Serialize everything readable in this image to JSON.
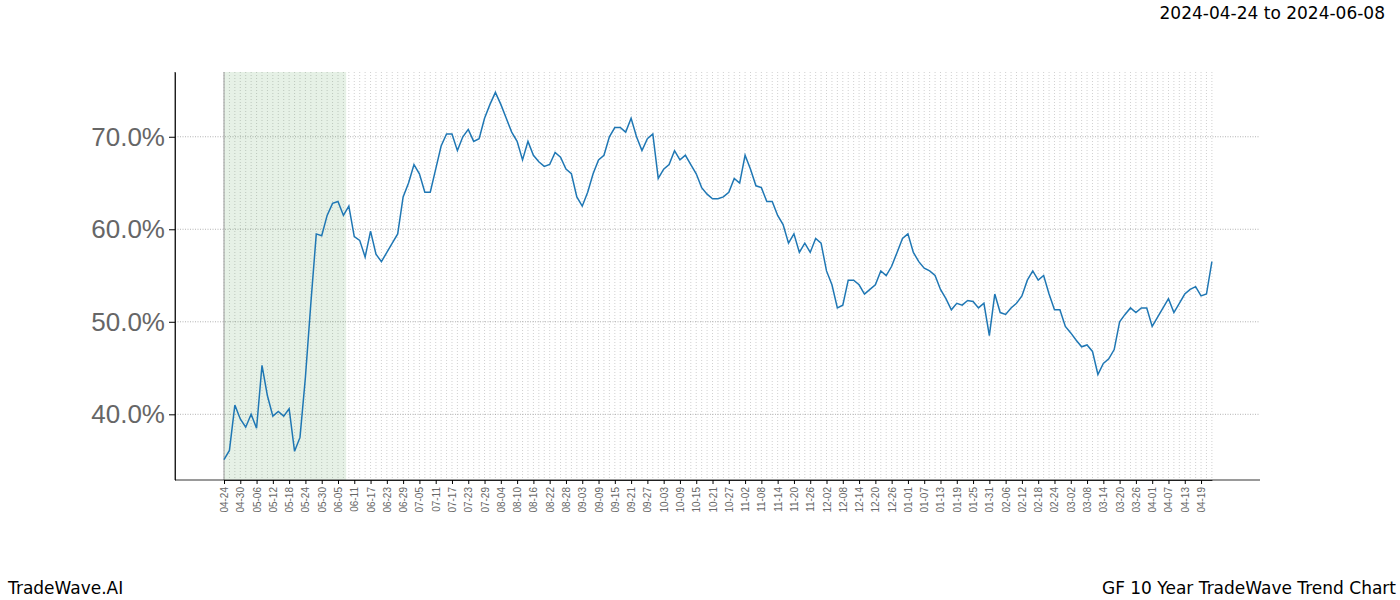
{
  "chart_data": {
    "type": "line",
    "title": "2024-04-24 to 2024-06-08",
    "footer_left": "TradeWave.AI",
    "footer_right": "GF 10 Year TradeWave Trend Chart",
    "categories": [
      "04-24",
      null,
      null,
      "04-30",
      null,
      null,
      "05-06",
      null,
      null,
      "05-12",
      null,
      null,
      "05-18",
      null,
      null,
      "05-24",
      null,
      null,
      "05-30",
      null,
      null,
      "06-05",
      null,
      null,
      "06-11",
      null,
      null,
      "06-17",
      null,
      null,
      "06-23",
      null,
      null,
      "06-29",
      null,
      null,
      "07-05",
      null,
      null,
      "07-11",
      null,
      null,
      "07-17",
      null,
      null,
      "07-23",
      null,
      null,
      "07-29",
      null,
      null,
      "08-04",
      null,
      null,
      "08-10",
      null,
      null,
      "08-16",
      null,
      null,
      "08-22",
      null,
      null,
      "08-28",
      null,
      null,
      "09-03",
      null,
      null,
      "09-09",
      null,
      null,
      "09-15",
      null,
      null,
      "09-21",
      null,
      null,
      "09-27",
      null,
      null,
      "10-03",
      null,
      null,
      "10-09",
      null,
      null,
      "10-15",
      null,
      null,
      "10-21",
      null,
      null,
      "10-27",
      null,
      null,
      "11-02",
      null,
      null,
      "11-08",
      null,
      null,
      "11-14",
      null,
      null,
      "11-20",
      null,
      null,
      "11-26",
      null,
      null,
      "12-02",
      null,
      null,
      "12-08",
      null,
      null,
      "12-14",
      null,
      null,
      "12-20",
      null,
      null,
      "12-26",
      null,
      null,
      "01-01",
      null,
      null,
      "01-07",
      null,
      null,
      "01-13",
      null,
      null,
      "01-19",
      null,
      null,
      "01-25",
      null,
      null,
      "01-31",
      null,
      null,
      "02-06",
      null,
      null,
      "02-12",
      null,
      null,
      "02-18",
      null,
      null,
      "02-24",
      null,
      null,
      "03-02",
      null,
      null,
      "03-08",
      null,
      null,
      "03-14",
      null,
      null,
      "03-20",
      null,
      null,
      "03-26",
      null,
      null,
      "04-01",
      null,
      null,
      "04-07",
      null,
      null,
      "04-13",
      null,
      null,
      "04-19",
      null,
      null
    ],
    "values": [
      35.1,
      36.1,
      41.0,
      39.5,
      38.6,
      40.0,
      38.5,
      45.3,
      42.0,
      39.8,
      40.3,
      39.8,
      40.6,
      36.0,
      37.5,
      44.0,
      52.0,
      59.5,
      59.3,
      61.5,
      62.8,
      63.0,
      61.5,
      62.5,
      59.2,
      58.8,
      57.0,
      59.8,
      57.3,
      56.5,
      57.5,
      58.5,
      59.5,
      63.5,
      65.0,
      67.0,
      66.0,
      64.0,
      64.0,
      66.5,
      69.0,
      70.3,
      70.3,
      68.5,
      70.0,
      70.8,
      69.5,
      69.8,
      72.0,
      73.5,
      74.8,
      73.5,
      72.0,
      70.5,
      69.5,
      67.5,
      69.5,
      68.0,
      67.3,
      66.8,
      67.0,
      68.3,
      67.8,
      66.5,
      66.0,
      63.5,
      62.5,
      64.0,
      66.0,
      67.5,
      68.0,
      70.0,
      71.0,
      71.0,
      70.5,
      72.0,
      70.0,
      68.5,
      69.8,
      70.3,
      65.5,
      66.5,
      67.0,
      68.5,
      67.5,
      68.0,
      67.0,
      66.0,
      64.5,
      63.8,
      63.3,
      63.3,
      63.5,
      64.0,
      65.5,
      65.0,
      68.0,
      66.5,
      64.7,
      64.5,
      63.0,
      63.0,
      61.5,
      60.5,
      58.5,
      59.5,
      57.5,
      58.5,
      57.5,
      59.0,
      58.5,
      55.5,
      54.0,
      51.5,
      51.8,
      54.5,
      54.5,
      54.0,
      53.0,
      53.5,
      54.0,
      55.5,
      55.0,
      56.0,
      57.5,
      59.0,
      59.5,
      57.5,
      56.5,
      55.8,
      55.5,
      55.0,
      53.5,
      52.5,
      51.3,
      52.0,
      51.8,
      52.3,
      52.2,
      51.5,
      52.0,
      48.5,
      53.0,
      51.0,
      50.8,
      51.5,
      52.0,
      52.8,
      54.5,
      55.5,
      54.5,
      55.0,
      53.0,
      51.3,
      51.3,
      49.5,
      48.8,
      48.0,
      47.3,
      47.5,
      46.8,
      44.3,
      45.5,
      46.0,
      47.0,
      50.0,
      50.8,
      51.5,
      51.0,
      51.5,
      51.5,
      49.5,
      50.5,
      51.5,
      52.5,
      51.0,
      52.0,
      53.0,
      53.5,
      53.8,
      52.8,
      53.0,
      56.5
    ],
    "color": "#1f77b4",
    "shaded_span": [
      0,
      22.5
    ],
    "ylim": [
      32.9,
      77.0
    ],
    "yticks": [
      {
        "value": 40,
        "label": "40.0%"
      },
      {
        "value": 50,
        "label": "50.0%"
      },
      {
        "value": 60,
        "label": "60.0%"
      },
      {
        "value": 70,
        "label": "70.0%"
      }
    ],
    "grid": true
  }
}
